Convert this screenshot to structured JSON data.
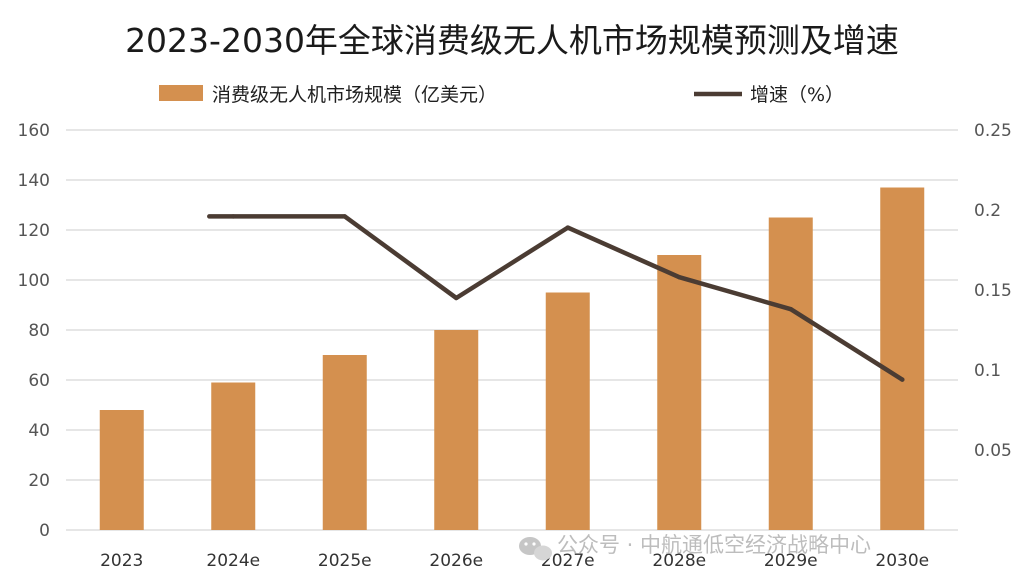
{
  "chart_data": {
    "type": "bar+line",
    "title": "2023-2030年全球消费级无人机市场规模预测及增速",
    "categories": [
      "2023",
      "2024e",
      "2025e",
      "2026e",
      "2027e",
      "2028e",
      "2029e",
      "2030e"
    ],
    "series": [
      {
        "name": "消费级无人机市场规模（亿美元）",
        "type": "bar",
        "axis": "left",
        "color": "#d4904f",
        "values": [
          48,
          59,
          70,
          80,
          95,
          110,
          125,
          137
        ]
      },
      {
        "name": "增速（%）",
        "type": "line",
        "axis": "right",
        "color": "#4b3c33",
        "values": [
          null,
          0.196,
          0.196,
          0.145,
          0.189,
          0.158,
          0.138,
          0.094
        ]
      }
    ],
    "y_left": {
      "min": 0,
      "max": 160,
      "ticks": [
        "0",
        "20",
        "40",
        "60",
        "80",
        "100",
        "120",
        "140",
        "160"
      ]
    },
    "y_right": {
      "min": 0,
      "max": 0.25,
      "ticks": [
        "0.05",
        "0.1",
        "0.15",
        "0.2",
        "0.25"
      ]
    },
    "legend_position": "top",
    "grid": true
  },
  "watermark": "公众号 · 中航通低空经济战略中心"
}
